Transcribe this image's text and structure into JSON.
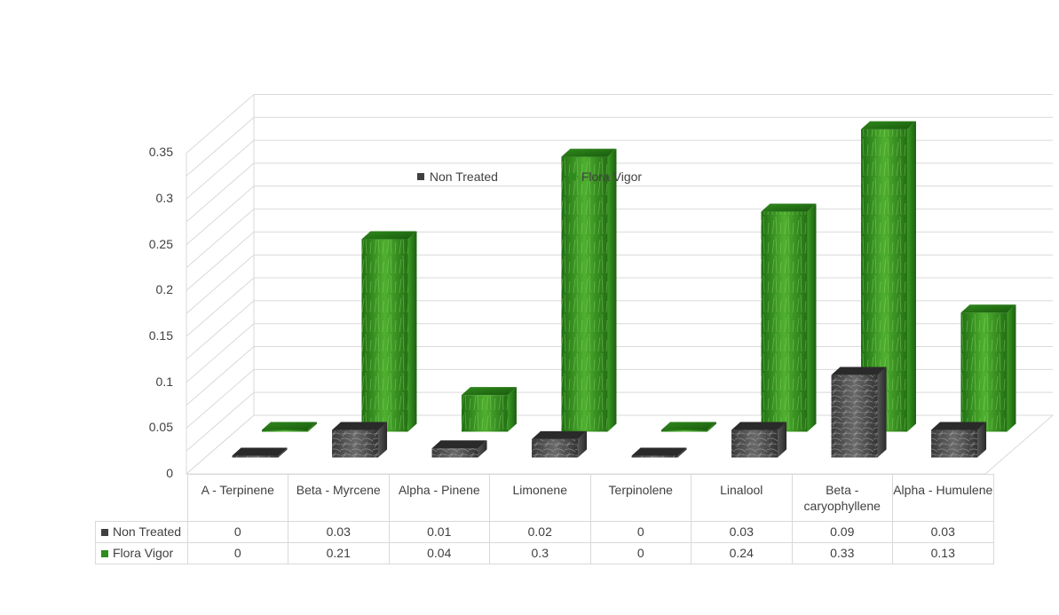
{
  "chart_data": {
    "type": "bar",
    "categories": [
      "A - Terpinene",
      "Beta - Myrcene",
      "Alpha - Pinene",
      "Limonene",
      "Terpinolene",
      "Linalool",
      "Beta - caryophyllene",
      "Alpha - Humulene"
    ],
    "series": [
      {
        "name": "Non Treated",
        "values": [
          0,
          0.03,
          0.01,
          0.02,
          0,
          0.03,
          0.09,
          0.03
        ],
        "display": [
          "0",
          "0.03",
          "0.01",
          "0.02",
          "0",
          "0.03",
          "0.09",
          "0.03"
        ],
        "color": "#404040"
      },
      {
        "name": "Flora Vigor",
        "values": [
          0,
          0.21,
          0.04,
          0.3,
          0,
          0.24,
          0.33,
          0.13
        ],
        "display": [
          "0",
          "0.21",
          "0.04",
          "0.3",
          "0",
          "0.24",
          "0.33",
          "0.13"
        ],
        "color": "#2e8b1e"
      }
    ],
    "yticks": [
      "0",
      "0.05",
      "0.1",
      "0.15",
      "0.2",
      "0.25",
      "0.3",
      "0.35"
    ],
    "ylim": [
      0,
      0.35
    ],
    "grid": true,
    "legend": "top-center",
    "data_table": true
  }
}
